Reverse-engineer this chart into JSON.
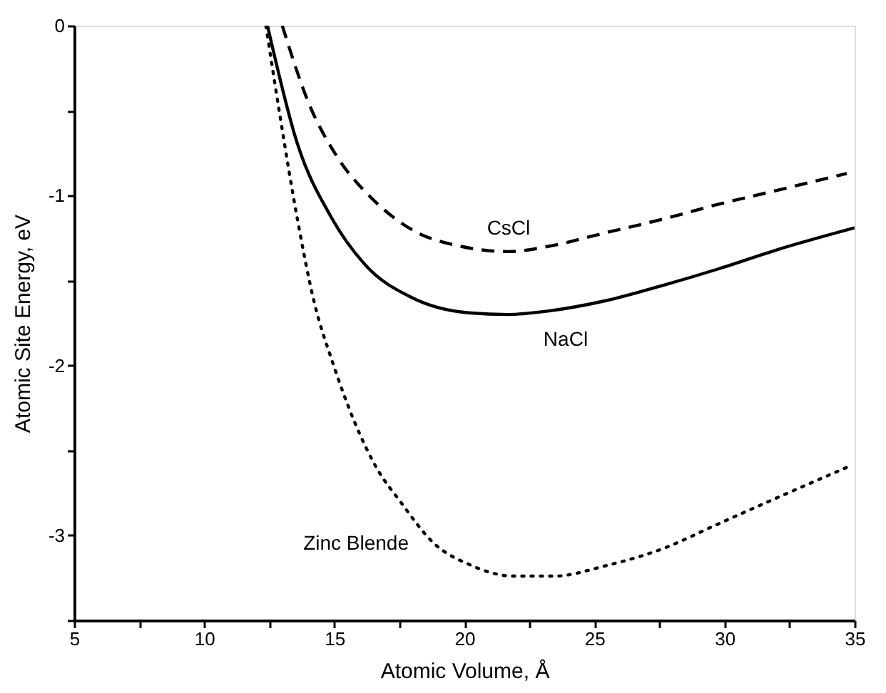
{
  "chart_data": {
    "type": "line",
    "xlabel": "Atomic Volume, Å",
    "ylabel": "Atomic Site Energy, eV",
    "xlim": [
      5,
      35
    ],
    "ylim": [
      -3.5,
      0
    ],
    "xticks": [
      5,
      {
        "value": 7.5,
        "label": null
      },
      10,
      {
        "value": 12.5,
        "label": null
      },
      15,
      {
        "value": 17.5,
        "label": null
      },
      20,
      {
        "value": 22.5,
        "label": null
      },
      25,
      {
        "value": 27.5,
        "label": null
      },
      30,
      {
        "value": 32.5,
        "label": null
      },
      35
    ],
    "yticks": [
      {
        "value": -3.5,
        "label": null
      },
      -3,
      {
        "value": -2.5,
        "label": null
      },
      -2,
      {
        "value": -1.5,
        "label": null
      },
      -1,
      {
        "value": -0.5,
        "label": null
      },
      0
    ],
    "grid": false,
    "legend": false,
    "marker": "none",
    "series": [
      {
        "name": "CsCl",
        "color": "#000000",
        "line_style": "dashed",
        "x": [
          13.0,
          14.0,
          15.1,
          16.4,
          17.97,
          19.9,
          21.7,
          23.2,
          25.4,
          27.6,
          29.8,
          32.0,
          34.7
        ],
        "values": [
          0,
          -0.45,
          -0.77,
          -1.01,
          -1.2,
          -1.3,
          -1.33,
          -1.3,
          -1.22,
          -1.14,
          -1.05,
          -0.97,
          -0.87
        ]
      },
      {
        "name": "NaCl",
        "color": "#000000",
        "line_style": "solid",
        "x": [
          12.43,
          13.57,
          14.89,
          16.2,
          17.97,
          20.16,
          21.7,
          23.2,
          25.4,
          27.6,
          29.8,
          32.0,
          35.0
        ],
        "values": [
          0,
          -0.69,
          -1.13,
          -1.41,
          -1.6,
          -1.69,
          -1.7,
          -1.68,
          -1.62,
          -1.53,
          -1.43,
          -1.32,
          -1.19
        ]
      },
      {
        "name": "Zinc Blende",
        "color": "#000000",
        "line_style": "dotted",
        "x": [
          12.37,
          12.9,
          13.57,
          14.23,
          14.93,
          15.77,
          16.65,
          17.53,
          18.85,
          20.16,
          21.9,
          23.46,
          25.4,
          27.6,
          29.8,
          32.0,
          34.7
        ],
        "values": [
          0,
          -0.52,
          -1.13,
          -1.63,
          -1.98,
          -2.33,
          -2.61,
          -2.8,
          -3.05,
          -3.17,
          -3.24,
          -3.24,
          -3.18,
          -3.08,
          -2.93,
          -2.78,
          -2.6
        ]
      }
    ]
  }
}
